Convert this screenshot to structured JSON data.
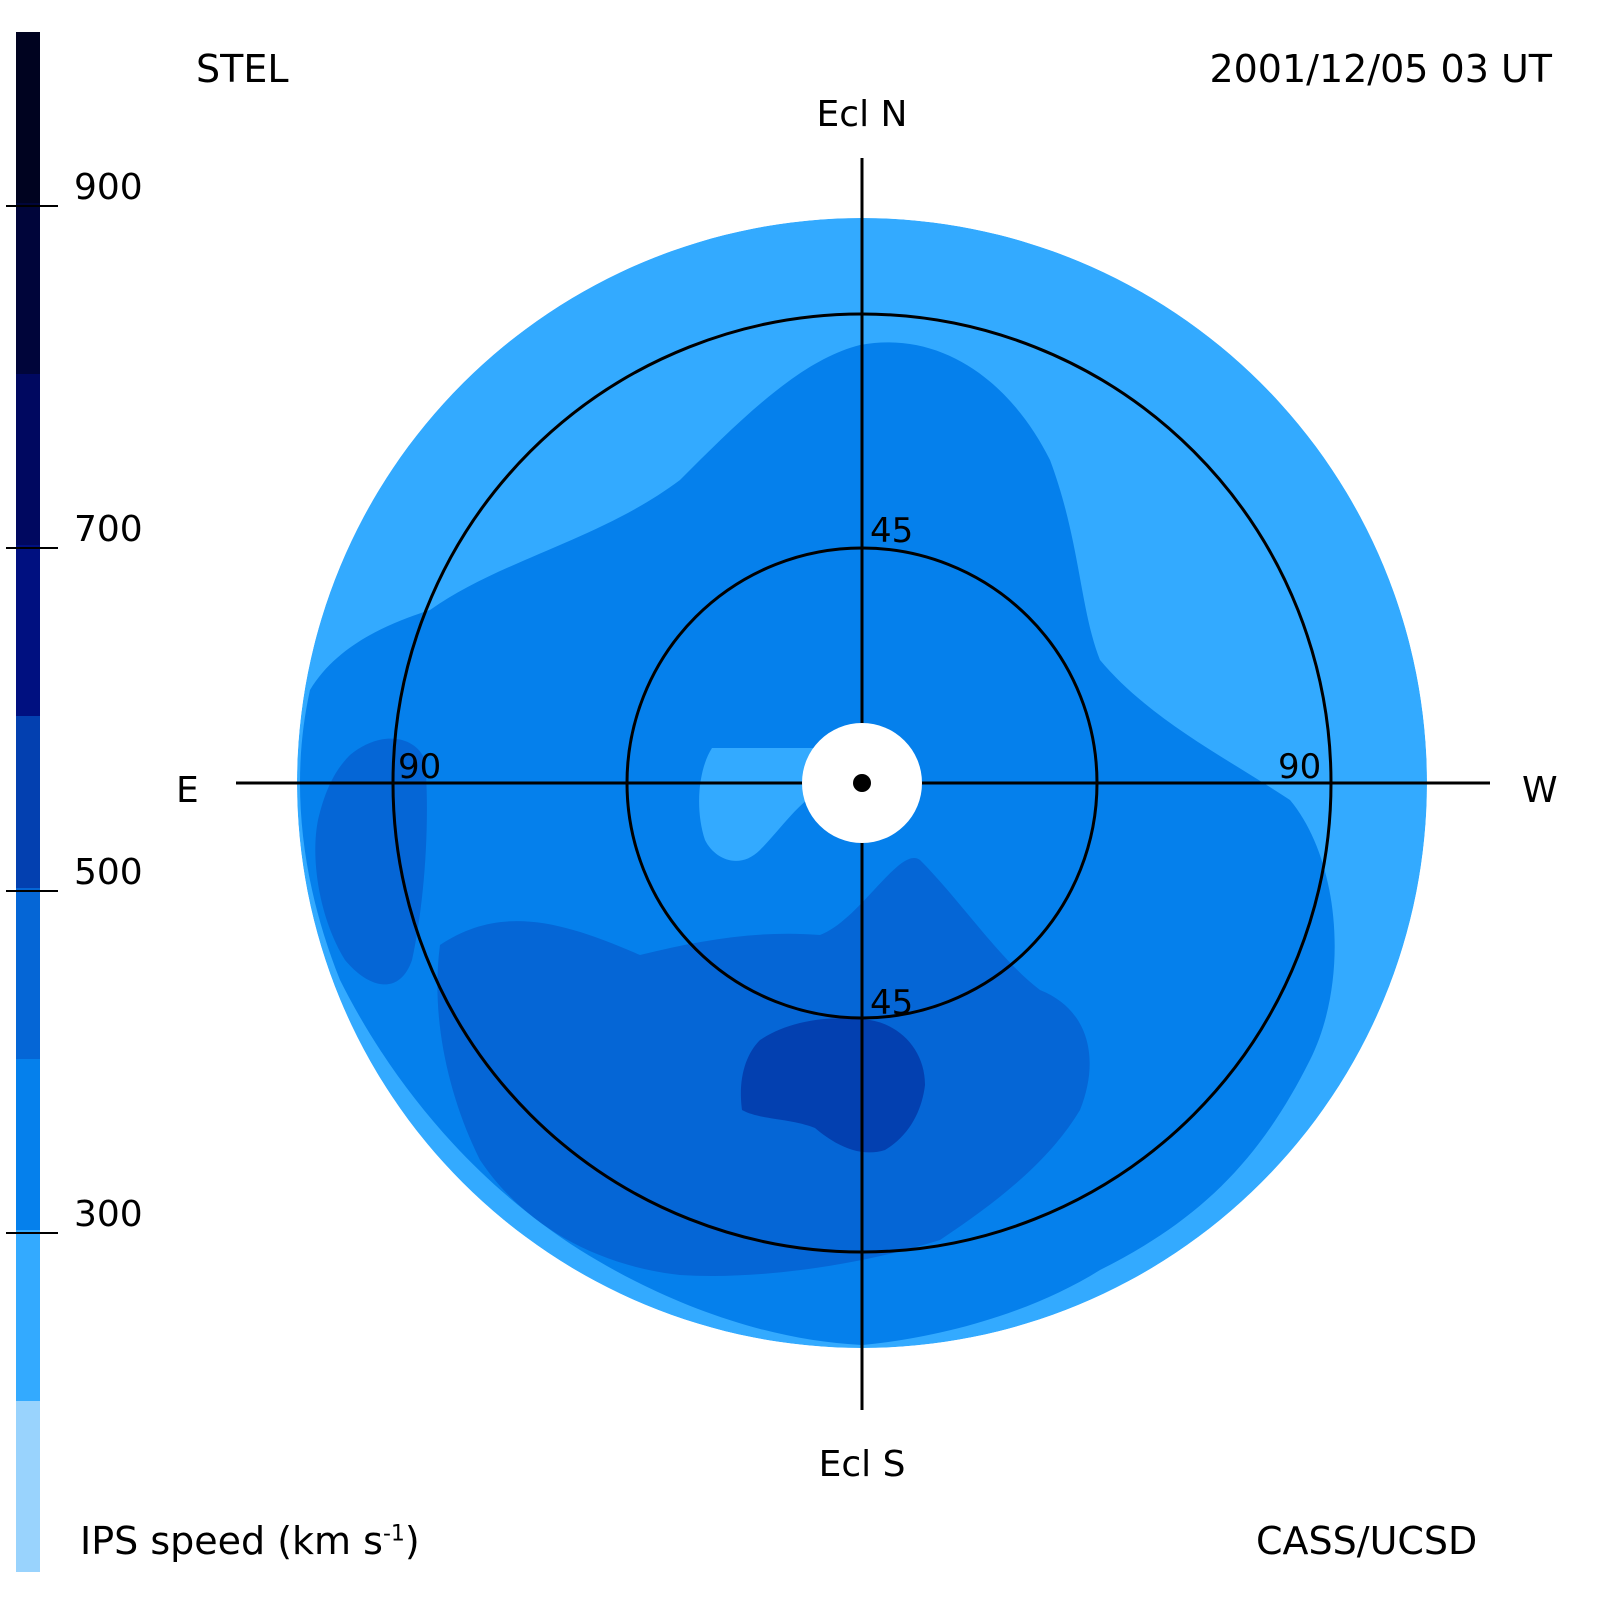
{
  "header": {
    "observatory": "STEL",
    "timestamp": "2001/12/05 03 UT"
  },
  "footer": {
    "colorbar_label": "IPS speed (km s",
    "colorbar_label_sup": "-1",
    "colorbar_label_end": ")",
    "credit": "CASS/UCSD"
  },
  "colorbar": {
    "range": [
      100,
      1000
    ],
    "ticks": [
      {
        "value": 300,
        "label": "300"
      },
      {
        "value": 500,
        "label": "500"
      },
      {
        "value": 700,
        "label": "700"
      },
      {
        "value": 900,
        "label": "900"
      }
    ],
    "bins": [
      {
        "from": 100,
        "to": 200,
        "color": "#99d3fd"
      },
      {
        "from": 200,
        "to": 300,
        "color": "#33aaff"
      },
      {
        "from": 300,
        "to": 400,
        "color": "#0580ec"
      },
      {
        "from": 400,
        "to": 500,
        "color": "#0566d6"
      },
      {
        "from": 500,
        "to": 600,
        "color": "#0340b0"
      },
      {
        "from": 600,
        "to": 700,
        "color": "#001080"
      },
      {
        "from": 700,
        "to": 800,
        "color": "#000860"
      },
      {
        "from": 800,
        "to": 900,
        "color": "#00053a"
      },
      {
        "from": 900,
        "to": 1000,
        "color": "#000320"
      }
    ]
  },
  "map": {
    "directions": {
      "north": "Ecl N",
      "south": "Ecl S",
      "east": "E",
      "west": "W"
    },
    "rings": [
      {
        "elongation": 45,
        "label": "45"
      },
      {
        "elongation": 90,
        "label": "90"
      }
    ],
    "sun_marker": "sun-dot"
  }
}
